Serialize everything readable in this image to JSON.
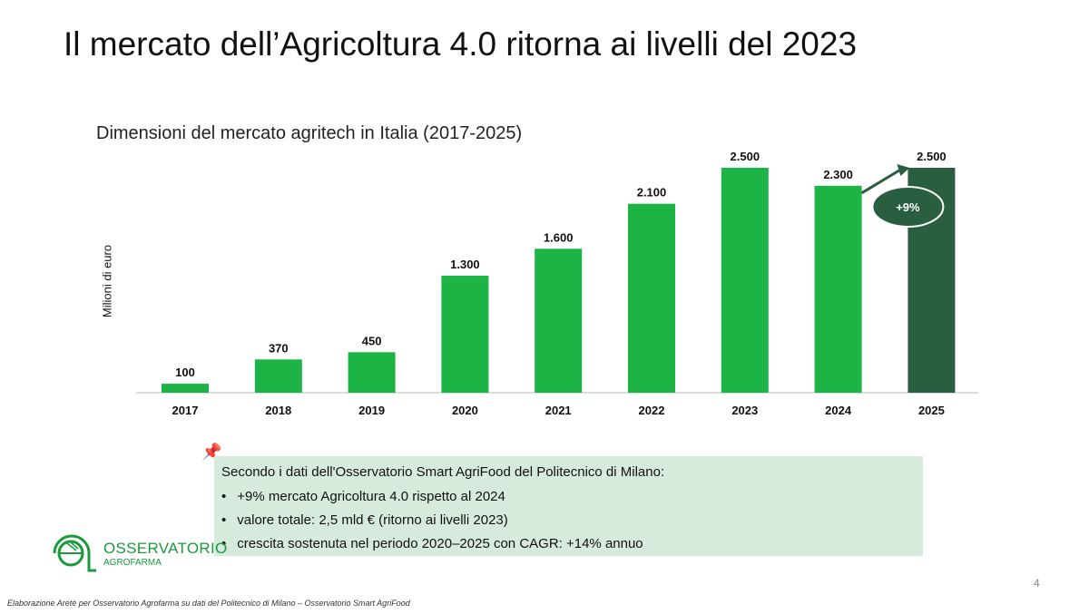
{
  "slide": {
    "title": "Il mercato dell’Agricoltura 4.0 ritorna ai livelli del 2023",
    "page_number": "4",
    "footer": "Elaborazione Aretè per Osservatorio Agrofarma su dati del Politecnico di Milano – Osservatorio Smart AgriFood",
    "logo": {
      "name": "OSSERVATORIO",
      "sub": "AGROFARMA"
    },
    "note": {
      "lead": "Secondo i dati dell'Osservatorio Smart AgriFood del Politecnico di Milano:",
      "bullets": [
        "+9% mercato Agricoltura 4.0 rispetto al 2024",
        "valore totale: 2,5 mld € (ritorno ai livelli 2023)",
        "crescita sostenuta nel periodo 2020–2025 con CAGR: +14% annuo"
      ]
    }
  },
  "chart_data": {
    "type": "bar",
    "title": "Dimensioni del mercato agritech in Italia (2017-2025)",
    "xlabel": "",
    "ylabel": "Milioni di euro",
    "categories": [
      "2017",
      "2018",
      "2019",
      "2020",
      "2021",
      "2022",
      "2023",
      "2024",
      "2025"
    ],
    "values": [
      100,
      370,
      450,
      1300,
      1600,
      2100,
      2500,
      2300,
      2500
    ],
    "data_labels": [
      "100",
      "370",
      "450",
      "1.300",
      "1.600",
      "2.100",
      "2.500",
      "2.300",
      "2.500"
    ],
    "ylim": [
      0,
      2500
    ],
    "grid": false,
    "colors": {
      "bar": "#1db446",
      "highlight": "#2a5e40"
    },
    "highlight_category": "2025",
    "annotation": {
      "text": "+9%",
      "from": "2024",
      "to": "2025"
    }
  }
}
